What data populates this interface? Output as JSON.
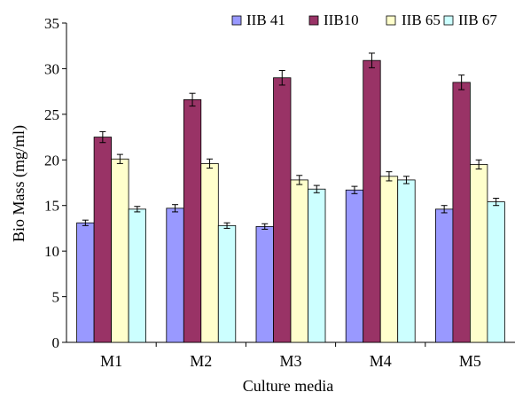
{
  "chart_data": {
    "type": "bar",
    "title": "",
    "xlabel": "Culture media",
    "ylabel": "Bio Mass (mg/ml)",
    "ylim": [
      0,
      35
    ],
    "yticks": [
      0,
      5,
      10,
      15,
      20,
      25,
      30,
      35
    ],
    "grid": false,
    "legend_position": "top",
    "error_bars": true,
    "categories": [
      "M1",
      "M2",
      "M3",
      "M4",
      "M5"
    ],
    "series": [
      {
        "name": "IIB 41",
        "color": "#9999ff",
        "values": [
          13.1,
          14.7,
          12.7,
          16.7,
          14.6
        ],
        "errors": [
          0.3,
          0.4,
          0.3,
          0.4,
          0.4
        ]
      },
      {
        "name": "IIB10",
        "color": "#993366",
        "values": [
          22.5,
          26.6,
          29.0,
          30.9,
          28.5
        ],
        "errors": [
          0.6,
          0.7,
          0.8,
          0.8,
          0.8
        ]
      },
      {
        "name": "IIB 65",
        "color": "#ffffcc",
        "values": [
          20.1,
          19.6,
          17.8,
          18.2,
          19.5
        ],
        "errors": [
          0.5,
          0.5,
          0.5,
          0.5,
          0.5
        ]
      },
      {
        "name": "IIB 67",
        "color": "#ccffff",
        "values": [
          14.6,
          12.8,
          16.8,
          17.8,
          15.4
        ],
        "errors": [
          0.3,
          0.3,
          0.4,
          0.4,
          0.4
        ]
      }
    ]
  }
}
